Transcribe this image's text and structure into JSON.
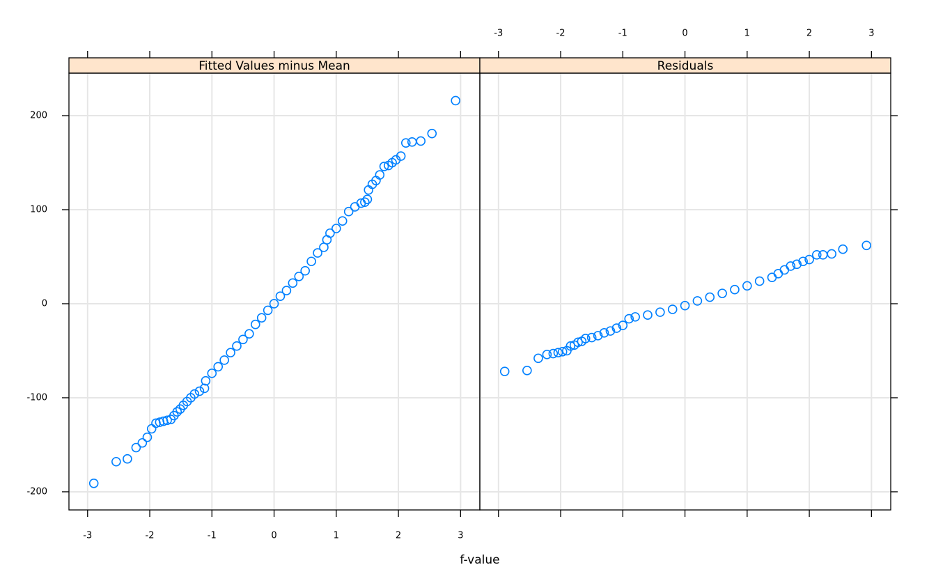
{
  "chart_data": {
    "type": "scatter",
    "xlabel": "f-value",
    "color": "#0080ff",
    "grid": true,
    "xlim": [
      -3.3,
      3.31
    ],
    "ylim": [
      -219.3,
      245.2
    ],
    "xticks": [
      -3,
      -2,
      -1,
      0,
      1,
      2,
      3
    ],
    "yticks": [
      -200,
      -100,
      0,
      100,
      200
    ],
    "panels": [
      {
        "title": "Fitted Values minus Mean",
        "x": [
          -2.9,
          -2.54,
          -2.36,
          -2.22,
          -2.12,
          -2.04,
          -1.97,
          -1.9,
          -1.84,
          -1.78,
          -1.72,
          -1.66,
          -1.61,
          -1.56,
          -1.51,
          -1.46,
          -1.4,
          -1.34,
          -1.28,
          -1.2,
          -1.12,
          -1.1,
          -1.0,
          -0.9,
          -0.8,
          -0.7,
          -0.6,
          -0.5,
          -0.4,
          -0.3,
          -0.2,
          -0.1,
          0,
          0.1,
          0.2,
          0.3,
          0.4,
          0.5,
          0.6,
          0.7,
          0.8,
          0.85,
          0.9,
          1.0,
          1.1,
          1.2,
          1.3,
          1.4,
          1.46,
          1.5,
          1.52,
          1.58,
          1.64,
          1.7,
          1.77,
          1.84,
          1.9,
          1.96,
          2.04,
          2.12,
          2.22,
          2.36,
          2.54,
          2.92
        ],
        "y": [
          -191,
          -168,
          -165,
          -153,
          -148,
          -142,
          -133,
          -127,
          -126,
          -125,
          -124,
          -123,
          -119,
          -115,
          -112,
          -108,
          -104,
          -100,
          -96,
          -93,
          -90,
          -82,
          -74,
          -67,
          -60,
          -52,
          -45,
          -38,
          -32,
          -22,
          -15,
          -7,
          0,
          8,
          14,
          22,
          29,
          35,
          45,
          54,
          60,
          68,
          75,
          80,
          88,
          98,
          103,
          107,
          108,
          111,
          121,
          127,
          131,
          137,
          146,
          147,
          150,
          153,
          157,
          171,
          172,
          173,
          181,
          216
        ]
      },
      {
        "title": "Residuals",
        "x": [
          -2.9,
          -2.54,
          -2.36,
          -2.22,
          -2.12,
          -2.04,
          -1.97,
          -1.9,
          -1.84,
          -1.78,
          -1.72,
          -1.66,
          -1.6,
          -1.5,
          -1.4,
          -1.3,
          -1.2,
          -1.1,
          -1.0,
          -0.9,
          -0.8,
          -0.6,
          -0.4,
          -0.2,
          0,
          0.2,
          0.4,
          0.6,
          0.8,
          1.0,
          1.2,
          1.4,
          1.5,
          1.6,
          1.7,
          1.8,
          1.9,
          2.0,
          2.12,
          2.22,
          2.36,
          2.54,
          2.92
        ],
        "y": [
          -72,
          -71,
          -58,
          -54,
          -53,
          -52,
          -51,
          -50,
          -45,
          -44,
          -41,
          -40,
          -37,
          -36,
          -34,
          -31,
          -29,
          -26,
          -23,
          -16,
          -14,
          -12,
          -9,
          -6,
          -2,
          3,
          7,
          11,
          15,
          19,
          24,
          28,
          32,
          36,
          40,
          42,
          45,
          47,
          52,
          52,
          53,
          58,
          62
        ]
      }
    ]
  }
}
